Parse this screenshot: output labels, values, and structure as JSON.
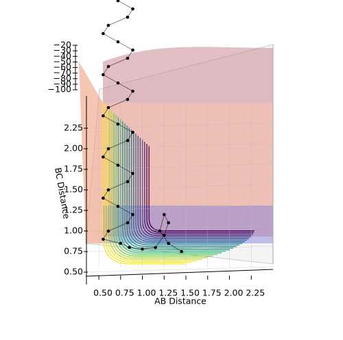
{
  "chart_data": {
    "type": "surface3d-trajectory",
    "xlabel": "AB Distance",
    "ylabel": "BC Distance",
    "xlim": [
      0.35,
      2.5
    ],
    "ylim": [
      0.35,
      2.5
    ],
    "zlim": [
      -100,
      -20
    ],
    "xticks": [
      {
        "value": 0.5,
        "label": "0.50"
      },
      {
        "value": 0.75,
        "label": "0.75"
      },
      {
        "value": 1.0,
        "label": "1.00"
      },
      {
        "value": 1.25,
        "label": "1.25"
      },
      {
        "value": 1.5,
        "label": "1.50"
      },
      {
        "value": 1.75,
        "label": "1.75"
      },
      {
        "value": 2.0,
        "label": "2.00"
      },
      {
        "value": 2.25,
        "label": "2.25"
      }
    ],
    "yticks": [
      {
        "value": 0.5,
        "label": "0.50"
      },
      {
        "value": 0.75,
        "label": "0.75"
      },
      {
        "value": 1.0,
        "label": "1.00"
      },
      {
        "value": 1.25,
        "label": "1.25"
      },
      {
        "value": 1.5,
        "label": "1.50"
      },
      {
        "value": 1.75,
        "label": "1.75"
      },
      {
        "value": 2.0,
        "label": "2.00"
      },
      {
        "value": 2.25,
        "label": "2.25"
      }
    ],
    "zticks": [
      {
        "value": -20,
        "label": "−20"
      },
      {
        "value": -30,
        "label": "−30"
      },
      {
        "value": -40,
        "label": "−40"
      },
      {
        "value": -50,
        "label": "−50"
      },
      {
        "value": -60,
        "label": "−60"
      },
      {
        "value": -70,
        "label": "−70"
      },
      {
        "value": -80,
        "label": "−80"
      },
      {
        "value": -90,
        "label": "−90"
      },
      {
        "value": -100,
        "label": "−100"
      }
    ],
    "trajectory": {
      "color": "#000000",
      "x": [
        0.72,
        0.89,
        0.83,
        0.61,
        0.55,
        0.72,
        0.89,
        0.83,
        0.61,
        0.55,
        0.72,
        0.89,
        0.83,
        0.61,
        0.55,
        0.72,
        0.89,
        0.83,
        0.61,
        0.55,
        0.72,
        0.89,
        0.83,
        0.61,
        0.55,
        0.72,
        0.89,
        0.83,
        0.61,
        0.55,
        0.75,
        0.85,
        1.0,
        1.15,
        1.25,
        1.3,
        1.25,
        1.2,
        1.3,
        1.45
      ],
      "y": [
        3.8,
        3.7,
        3.6,
        3.5,
        3.4,
        3.3,
        3.2,
        3.1,
        3.0,
        2.9,
        2.8,
        2.7,
        2.6,
        2.5,
        2.4,
        2.3,
        2.2,
        2.1,
        2.0,
        1.9,
        1.8,
        1.7,
        1.6,
        1.5,
        1.4,
        1.3,
        1.2,
        1.1,
        1.0,
        0.9,
        0.85,
        0.8,
        0.78,
        0.8,
        0.95,
        1.1,
        1.2,
        1.0,
        0.85,
        0.75
      ]
    }
  }
}
